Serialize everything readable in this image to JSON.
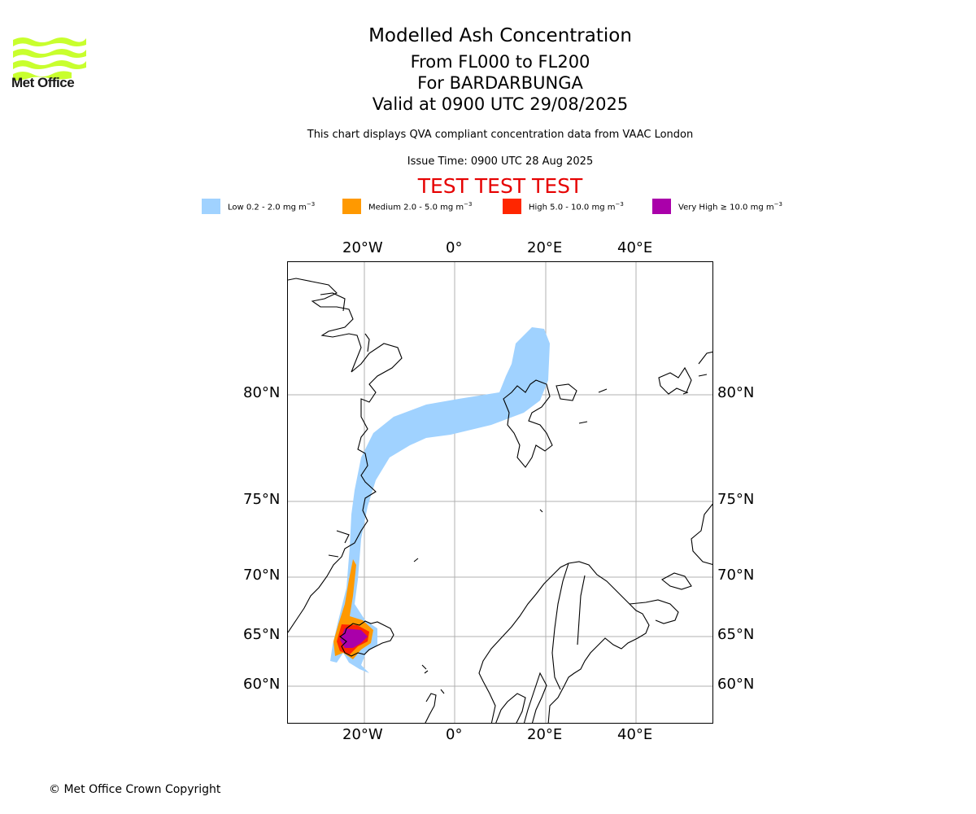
{
  "header": {
    "logo_text": "Met Office",
    "title": "Modelled Ash Concentration",
    "levels": "From FL000 to FL200",
    "volcano": "For BARDARBUNGA",
    "valid": "Valid at 0900 UTC 29/08/2025",
    "description": "This chart displays QVA compliant concentration data from VAAC London",
    "issue_time": "Issue Time: 0900 UTC 28 Aug 2025",
    "test_banner": "TEST TEST TEST"
  },
  "legend": [
    {
      "label": "Low 0.2 - 2.0 mg m",
      "color": "#a0d2ff"
    },
    {
      "label": "Medium 2.0 - 5.0 mg m",
      "color": "#ff9900"
    },
    {
      "label": "High 5.0 - 10.0 mg m",
      "color": "#ff2600"
    },
    {
      "label": "Very High ≥ 10.0 mg m",
      "color": "#aa00aa"
    }
  ],
  "legend_unit_exponent": "−3",
  "map": {
    "longitude_ticks": [
      "20°W",
      "0°",
      "20°E",
      "40°E"
    ],
    "latitude_ticks": [
      "80°N",
      "75°N",
      "70°N",
      "65°N",
      "60°N"
    ]
  },
  "footer": {
    "copyright": "© Met Office Crown Copyright"
  }
}
